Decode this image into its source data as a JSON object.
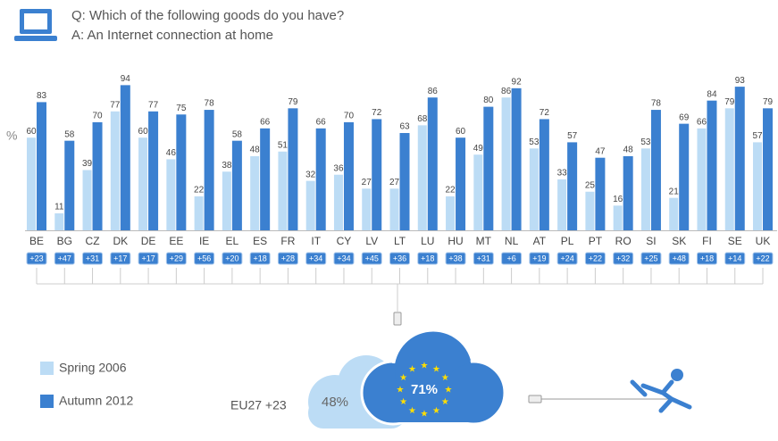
{
  "chart_data": {
    "type": "bar",
    "question": "Q: Which of the following goods do you have?",
    "answer": "A: An Internet connection at home",
    "y_label": "%",
    "categories": [
      "BE",
      "BG",
      "CZ",
      "DK",
      "DE",
      "EE",
      "IE",
      "EL",
      "ES",
      "FR",
      "IT",
      "CY",
      "LV",
      "LT",
      "LU",
      "HU",
      "MT",
      "NL",
      "AT",
      "PL",
      "PT",
      "RO",
      "SI",
      "SK",
      "FI",
      "SE",
      "UK"
    ],
    "series": [
      {
        "name": "Spring 2006",
        "color": "#bcdcf5",
        "values": [
          60,
          11,
          39,
          77,
          60,
          46,
          22,
          38,
          48,
          51,
          32,
          36,
          27,
          27,
          68,
          22,
          49,
          86,
          53,
          33,
          25,
          16,
          53,
          21,
          66,
          79,
          57
        ]
      },
      {
        "name": "Autumn 2012",
        "color": "#3b80d0",
        "values": [
          83,
          58,
          70,
          94,
          77,
          75,
          78,
          58,
          66,
          79,
          66,
          70,
          72,
          63,
          86,
          60,
          80,
          92,
          72,
          57,
          47,
          48,
          78,
          69,
          84,
          93,
          79
        ]
      }
    ],
    "change_labels": [
      "+23",
      "+47",
      "+31",
      "+17",
      "+17",
      "+29",
      "+56",
      "+20",
      "+18",
      "+28",
      "+34",
      "+34",
      "+45",
      "+36",
      "+18",
      "+38",
      "+31",
      "+6",
      "+19",
      "+24",
      "+22",
      "+32",
      "+25",
      "+48",
      "+18",
      "+14",
      "+22"
    ],
    "ylim": [
      0,
      100
    ],
    "eu27_label": "EU27 +23",
    "eu27_spring": "48%",
    "eu27_autumn": "71%"
  }
}
